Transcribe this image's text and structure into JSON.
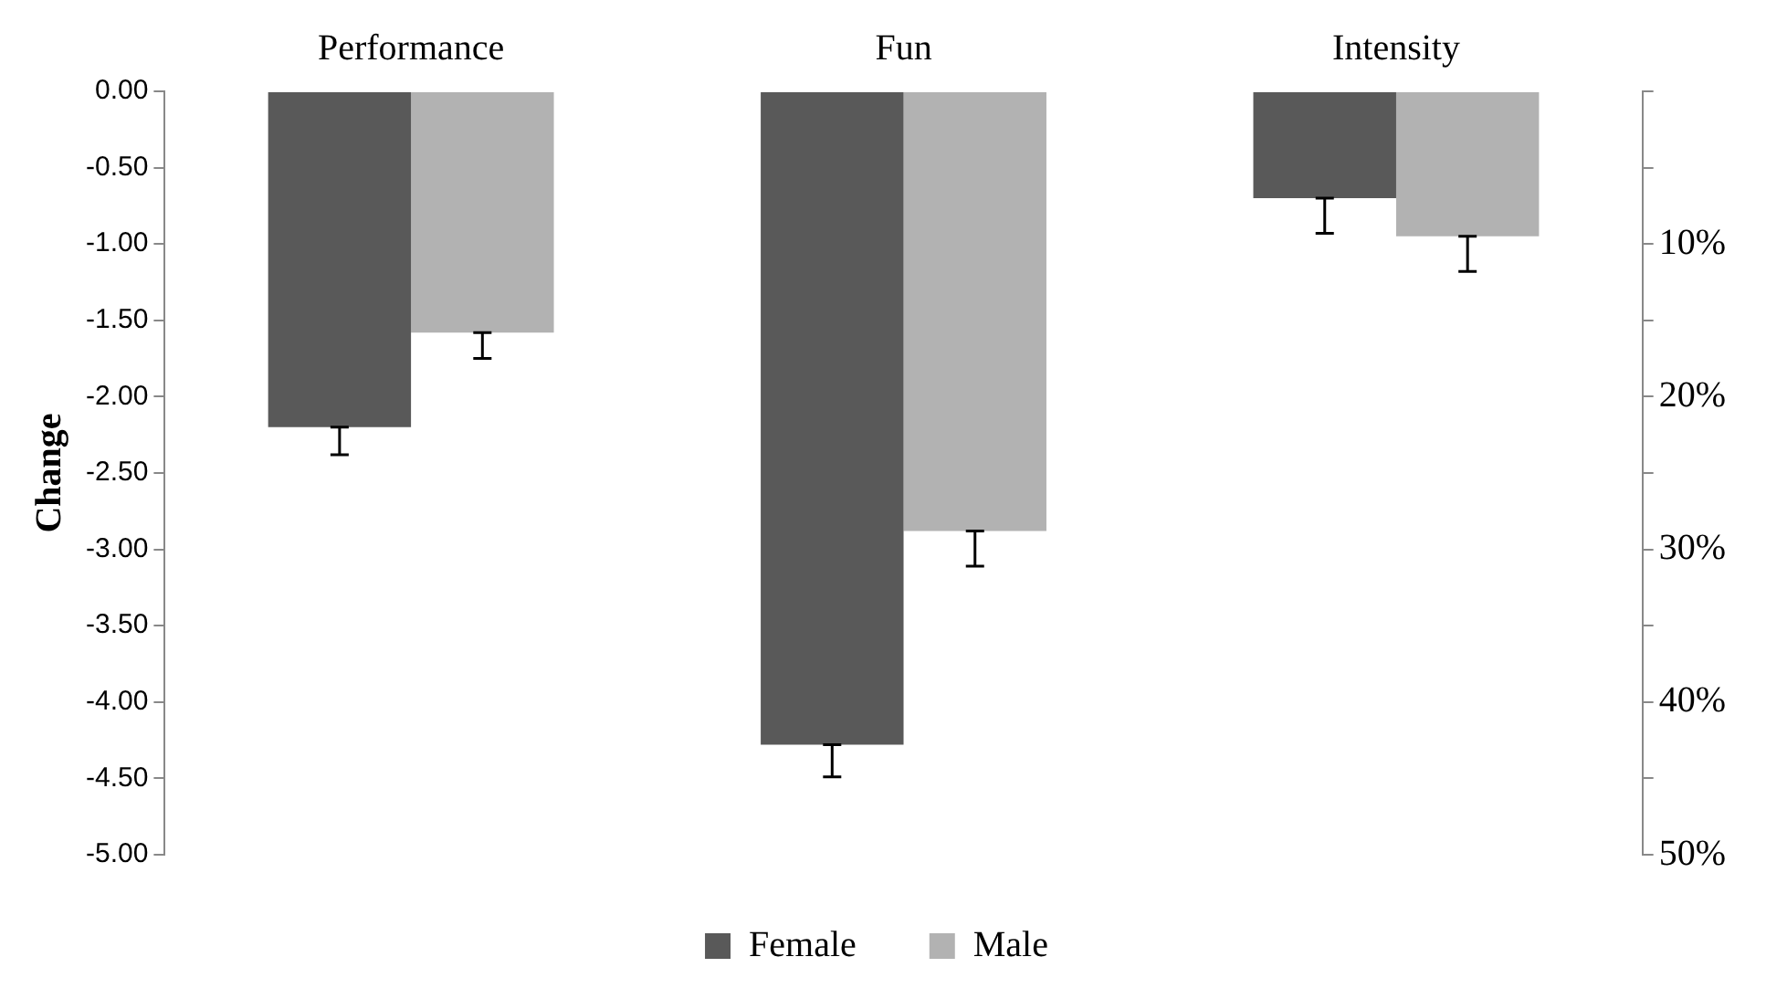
{
  "chart_data": {
    "type": "bar",
    "ylabel": "Change",
    "categories": [
      "Performance",
      "Fun",
      "Intensity"
    ],
    "series": [
      {
        "name": "Female",
        "color": "#595959",
        "values": [
          -2.2,
          -4.28,
          -0.7
        ],
        "errors": [
          [
            -2.38,
            -2.2
          ],
          [
            -4.49,
            -4.28
          ],
          [
            -0.93,
            -0.7
          ]
        ]
      },
      {
        "name": "Male",
        "color": "#b2b2b2",
        "values": [
          -1.58,
          -2.88,
          -0.95
        ],
        "errors": [
          [
            -1.75,
            -1.58
          ],
          [
            -3.11,
            -2.88
          ],
          [
            -1.18,
            -0.95
          ]
        ]
      }
    ],
    "ylim": [
      -5,
      0
    ],
    "yticks": [
      {
        "value": 0,
        "label": "0.00"
      },
      {
        "value": -0.5,
        "label": "-0.50"
      },
      {
        "value": -1,
        "label": "-1.00"
      },
      {
        "value": -1.5,
        "label": "-1.50"
      },
      {
        "value": -2,
        "label": "-2.00"
      },
      {
        "value": -2.5,
        "label": "-2.50"
      },
      {
        "value": -3,
        "label": "-3.00"
      },
      {
        "value": -3.5,
        "label": "-3.50"
      },
      {
        "value": -4,
        "label": "-4.00"
      },
      {
        "value": -4.5,
        "label": "-4.50"
      },
      {
        "value": -5,
        "label": "-5.00"
      }
    ],
    "y2lim": [
      50,
      0
    ],
    "y2ticks": [
      {
        "value": 0,
        "label": null
      },
      {
        "value": 5,
        "label": null
      },
      {
        "value": 10,
        "label": "10%"
      },
      {
        "value": 15,
        "label": null
      },
      {
        "value": 20,
        "label": "20%"
      },
      {
        "value": 25,
        "label": null
      },
      {
        "value": 30,
        "label": "30%"
      },
      {
        "value": 35,
        "label": null
      },
      {
        "value": 40,
        "label": "40%"
      },
      {
        "value": 45,
        "label": null
      },
      {
        "value": 50,
        "label": "50%"
      }
    ],
    "legend": "bottom"
  }
}
